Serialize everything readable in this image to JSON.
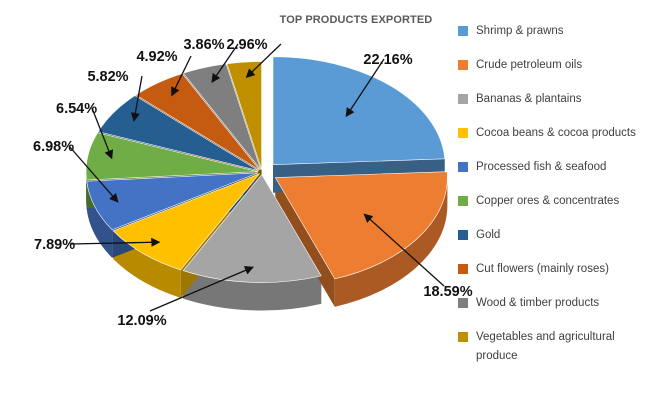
{
  "chart_data": {
    "type": "pie",
    "title": "TOP PRODUCTS EXPORTED",
    "legend_position": "right",
    "slices": [
      {
        "label": "Shrimp & prawns",
        "value": 22.16,
        "value_label": "22.16%",
        "color": "#5b9bd5"
      },
      {
        "label": "Crude petroleum oils",
        "value": 18.59,
        "value_label": "18.59%",
        "color": "#ed7d31"
      },
      {
        "label": "Bananas & plantains",
        "value": 12.09,
        "value_label": "12.09%",
        "color": "#a5a5a5"
      },
      {
        "label": "Cocoa beans & cocoa products",
        "value": 7.89,
        "value_label": "7.89%",
        "color": "#ffc000"
      },
      {
        "label": "Processed fish & seafood",
        "value": 6.98,
        "value_label": "6.98%",
        "color": "#4472c4"
      },
      {
        "label": "Copper ores & concentrates",
        "value": 6.54,
        "value_label": "6.54%",
        "color": "#70ad47"
      },
      {
        "label": "Gold",
        "value": 5.82,
        "value_label": "5.82%",
        "color": "#255e91"
      },
      {
        "label": "Cut flowers (mainly roses)",
        "value": 4.92,
        "value_label": "4.92%",
        "color": "#c55a11"
      },
      {
        "label": "Wood & timber products",
        "value": 3.86,
        "value_label": "3.86%",
        "color": "#7f7f7f"
      },
      {
        "label": "Vegetables and agricultural produce",
        "value": 2.96,
        "value_label": "2.96%",
        "color": "#bf8f00"
      }
    ]
  }
}
